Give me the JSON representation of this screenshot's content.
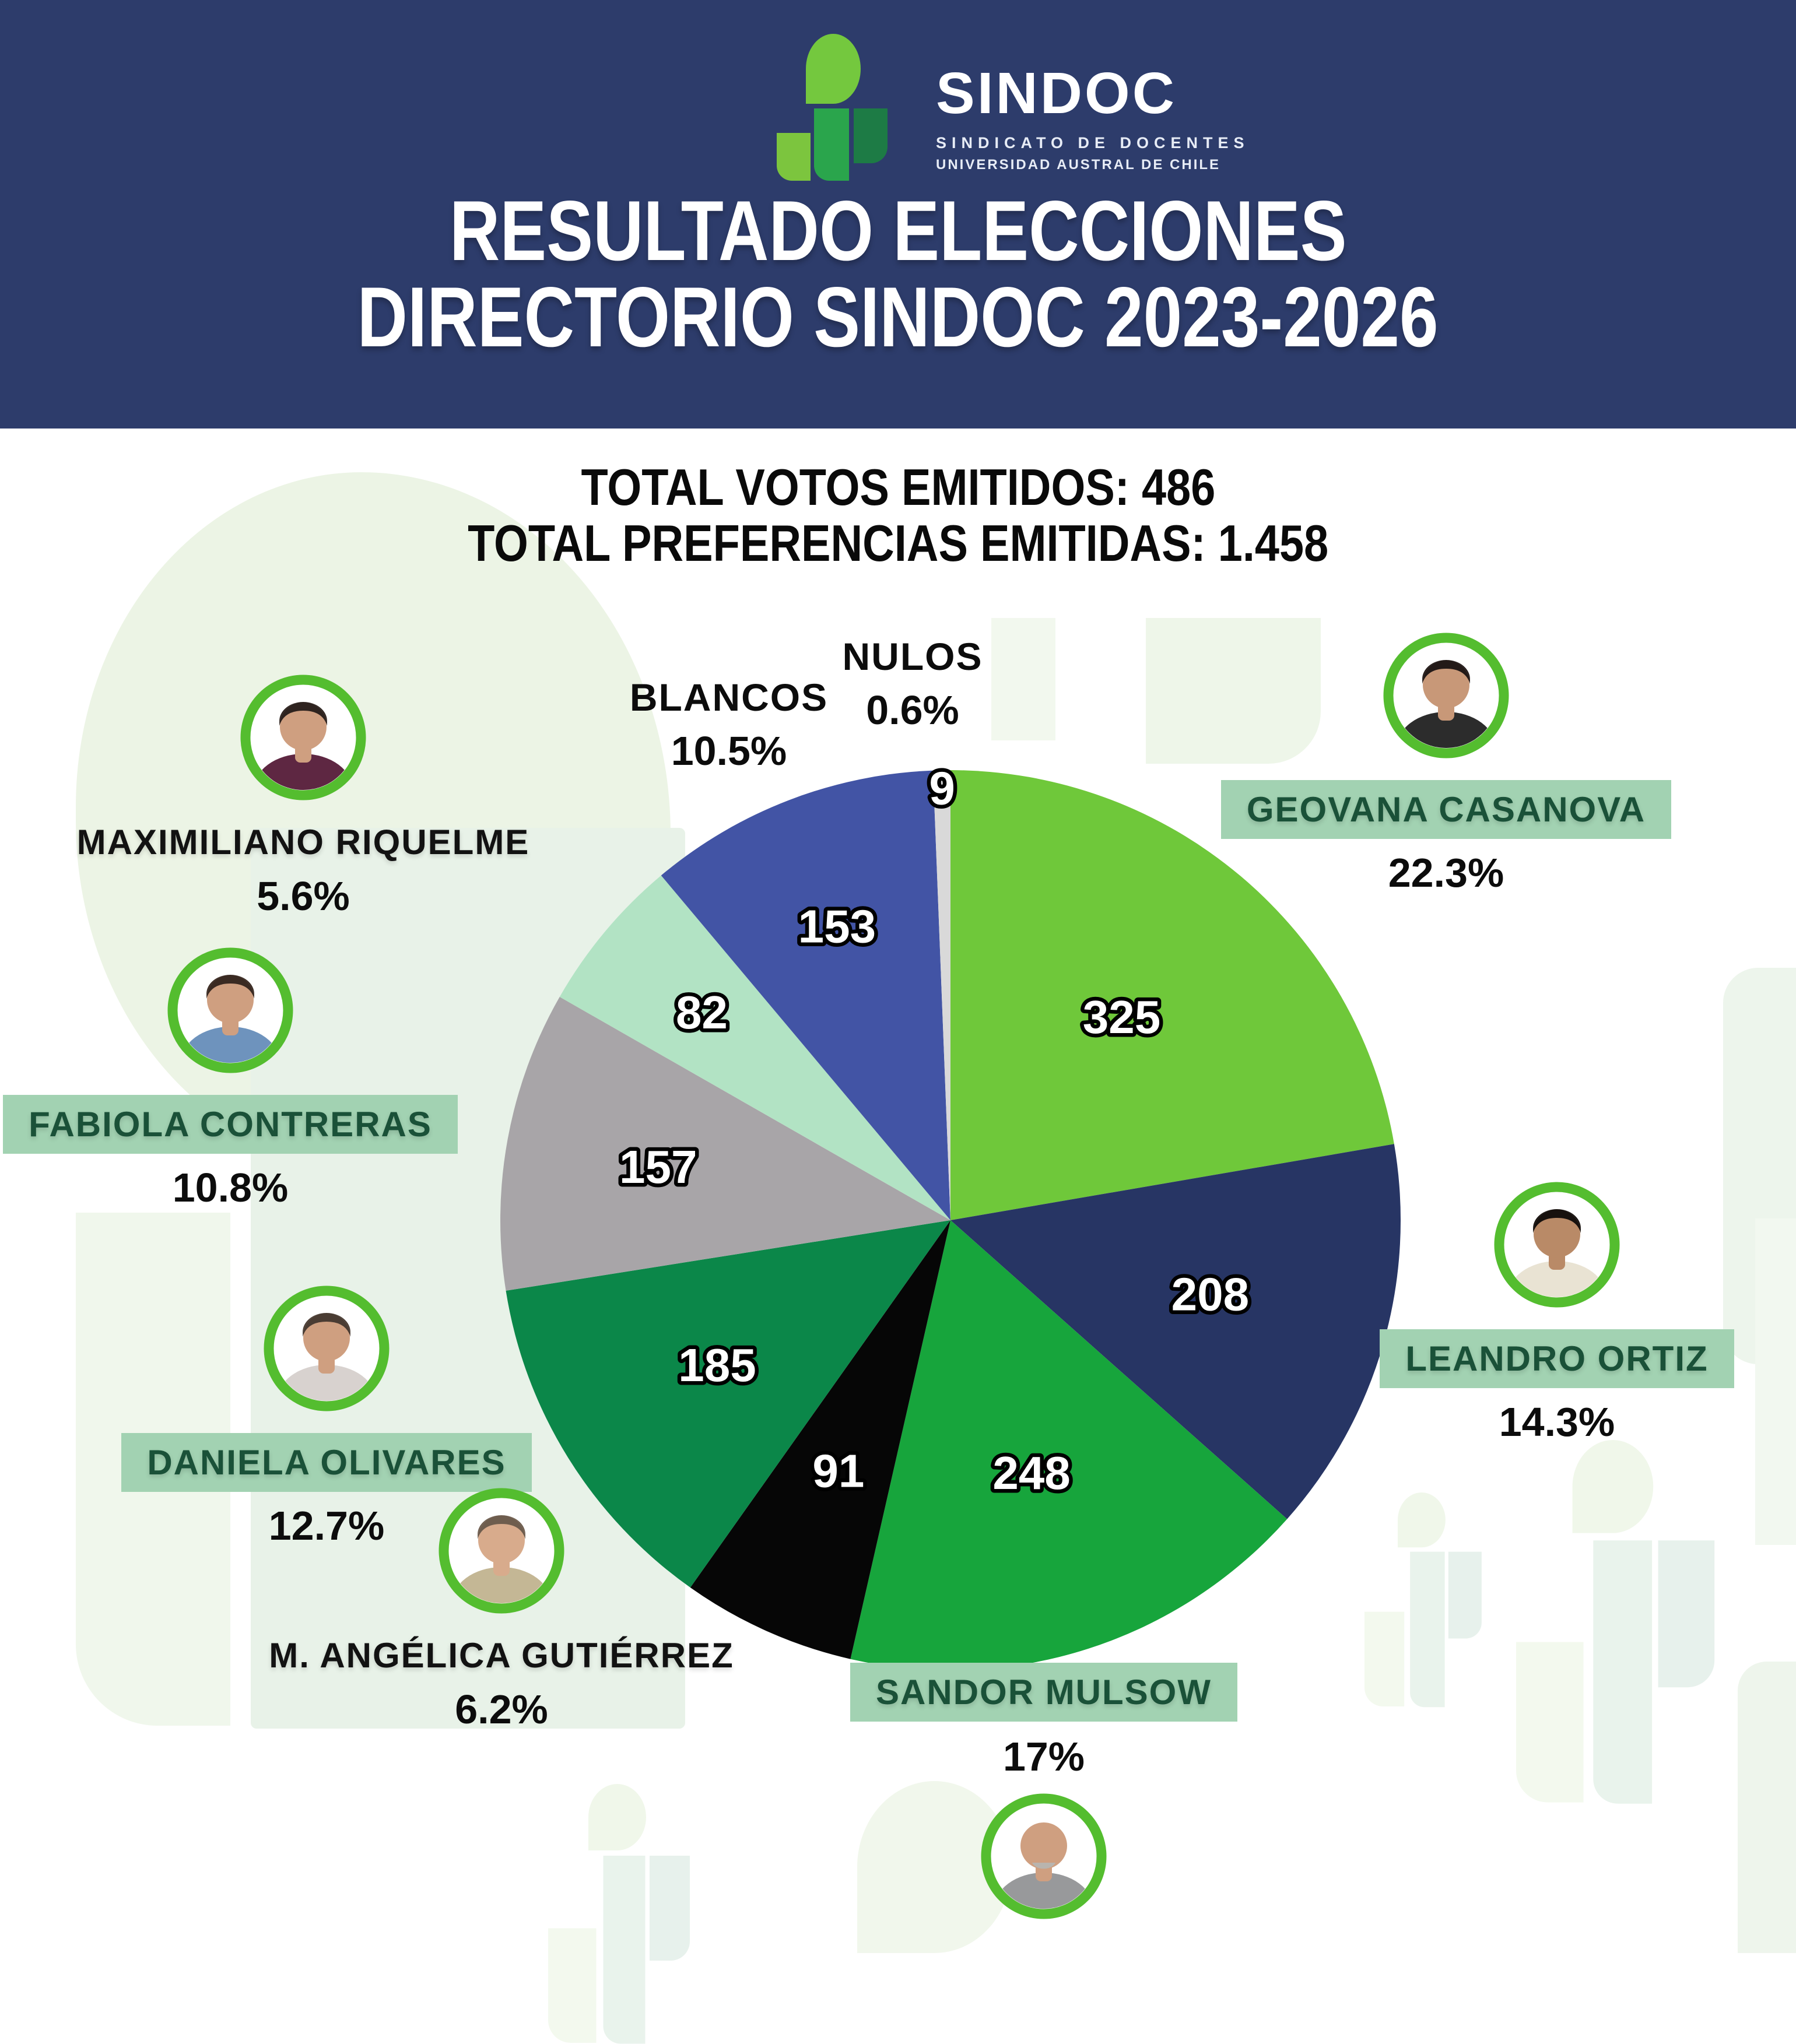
{
  "header": {
    "brand": "SINDOC",
    "brand_sub1": "SINDICATO DE DOCENTES",
    "brand_sub2": "UNIVERSIDAD AUSTRAL DE CHILE",
    "title_line1": "RESULTADO ELECCIONES",
    "title_line2": "DIRECTORIO SINDOC 2023-2026",
    "bg_color": "#2d3c6b",
    "logo_colors": {
      "leaf": "#74c83e",
      "center_bar": "#2aa54c",
      "right_bar": "#1d7b45",
      "left_bar": "#7cc53e"
    }
  },
  "totals": {
    "line1": "TOTAL VOTOS EMITIDOS: 486",
    "line2": "TOTAL PREFERENCIAS EMITIDAS: 1.458"
  },
  "chart_data": {
    "type": "pie",
    "total": 1458,
    "start_angle_deg": 0,
    "direction": "clockwise",
    "value_label_style": {
      "fill": "#ffffff",
      "outline": "#000000"
    },
    "slices": [
      {
        "label": "Geovana Casanova",
        "value": 325,
        "pct": "22.3%",
        "color": "#6fc83a",
        "label_r": 0.59
      },
      {
        "label": "Leandro Ortiz",
        "value": 208,
        "pct": "14.3%",
        "color": "#273564",
        "label_r": 0.6
      },
      {
        "label": "Sandor Mulsow",
        "value": 248,
        "pct": "17%",
        "color": "#17a53c",
        "label_r": 0.59
      },
      {
        "label": "M. Angélica Gutiérrez",
        "value": 91,
        "pct": "6.2%",
        "color": "#060606",
        "label_r": 0.61
      },
      {
        "label": "Daniela Olivares",
        "value": 185,
        "pct": "12.7%",
        "color": "#0b8749",
        "label_r": 0.61
      },
      {
        "label": "Fabiola Contreras",
        "value": 157,
        "pct": "10.8%",
        "color": "#a8a5a8",
        "label_r": 0.66
      },
      {
        "label": "Maximiliano Riquelme",
        "value": 82,
        "pct": "5.6%",
        "color": "#b2e3c4",
        "label_r": 0.72
      },
      {
        "label": "Blancos",
        "value": 153,
        "pct": "10.5%",
        "color": "#4254a5",
        "label_r": 0.7
      },
      {
        "label": "Nulos",
        "value": 9,
        "pct": "0.6%",
        "color": "#d9d9d9",
        "label_r": 0.96
      }
    ]
  },
  "other_labels": {
    "blancos_name": "BLANCOS",
    "blancos_pct": "10.5%",
    "nulos_name": "NULOS",
    "nulos_pct": "0.6%"
  },
  "candidates": [
    {
      "name": "MAXIMILIANO RIQUELME",
      "pct": "5.6%",
      "highlighted": false,
      "avatar": {
        "cloth": "#5e2742",
        "hair": "#2e231f",
        "skin": "#cf9f80",
        "bald": false
      }
    },
    {
      "name": "FABIOLA CONTRERAS",
      "pct": "10.8%",
      "highlighted": true,
      "avatar": {
        "cloth": "#6e93bd",
        "hair": "#3a2a22",
        "skin": "#cf9f80",
        "bald": false
      }
    },
    {
      "name": "DANIELA OLIVARES",
      "pct": "12.7%",
      "highlighted": true,
      "avatar": {
        "cloth": "#d8d2cf",
        "hair": "#4a3c33",
        "skin": "#cf9f80",
        "bald": false
      }
    },
    {
      "name": "M. ANGÉLICA GUTIÉRREZ",
      "pct": "6.2%",
      "highlighted": false,
      "avatar": {
        "cloth": "#c4b795",
        "hair": "#6e5d4e",
        "skin": "#d8ab8c",
        "bald": false
      }
    },
    {
      "name": "GEOVANA CASANOVA",
      "pct": "22.3%",
      "highlighted": true,
      "avatar": {
        "cloth": "#2c2c2c",
        "hair": "#231a18",
        "skin": "#c89878",
        "bald": false
      }
    },
    {
      "name": "LEANDRO ORTIZ",
      "pct": "14.3%",
      "highlighted": true,
      "avatar": {
        "cloth": "#e9e3d3",
        "hair": "#17110e",
        "skin": "#b98a67",
        "bald": false
      }
    },
    {
      "name": "SANDOR MULSOW",
      "pct": "17%",
      "highlighted": true,
      "avatar": {
        "cloth": "#98999b",
        "hair": "#b9b4ae",
        "skin": "#cf9f80",
        "bald": true
      }
    }
  ],
  "accents": {
    "ring_green": "#54bd2f",
    "band_green": "#a2d2b2",
    "band_text": "#1a5138"
  }
}
